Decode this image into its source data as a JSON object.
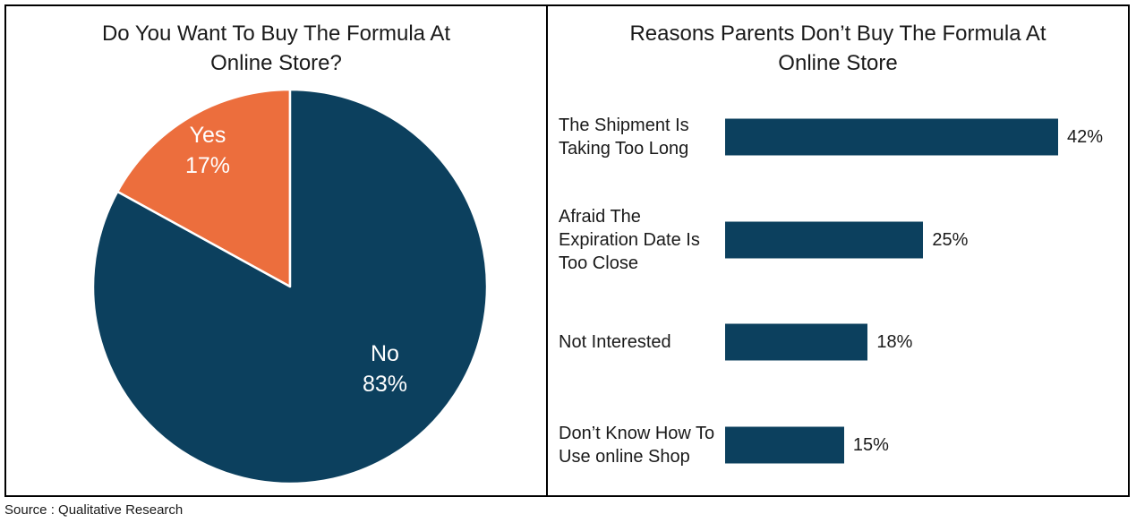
{
  "source_note": "Source : Qualitative Research",
  "colors": {
    "navy": "#0c405e",
    "orange": "#ec6e3d",
    "panel_border": "#000000",
    "slice_label_text": "#ffffff",
    "text": "#1a1a1a"
  },
  "chart_data": [
    {
      "type": "pie",
      "title": "Do You Want To Buy The Formula At Online Store?",
      "title_lines": [
        "Do You Want To Buy The Formula At",
        "Online Store?"
      ],
      "slices": [
        {
          "label": "Yes",
          "value": 17,
          "value_label": "17%",
          "color": "#ec6e3d"
        },
        {
          "label": "No",
          "value": 83,
          "value_label": "83%",
          "color": "#0c405e"
        }
      ],
      "start_angle": "12-o-clock",
      "first_slice_direction": "counterclockwise",
      "slice_divider_color": "#ffffff"
    },
    {
      "type": "bar",
      "orientation": "horizontal",
      "title": "Reasons Parents Don’t Buy The Formula At Online Store",
      "title_lines": [
        "Reasons Parents Don’t Buy The Formula At",
        "Online Store"
      ],
      "bar_color": "#0c405e",
      "xlim": [
        0,
        47
      ],
      "grid": false,
      "legend": "none",
      "categories": [
        "The Shipment Is Taking Too Long",
        "Afraid The Expiration Date Is Too Close",
        "Not Interested",
        "Don’t Know How To Use online Shop"
      ],
      "values": [
        42,
        25,
        18,
        15
      ],
      "bars": [
        {
          "label": "The Shipment Is\nTaking Too Long",
          "value": 42,
          "value_label": "42%"
        },
        {
          "label": "Afraid The\nExpiration Date Is\nToo Close",
          "value": 25,
          "value_label": "25%"
        },
        {
          "label": "Not Interested",
          "value": 18,
          "value_label": "18%"
        },
        {
          "label": "Don’t Know How To\nUse online Shop",
          "value": 15,
          "value_label": "15%"
        }
      ]
    }
  ]
}
